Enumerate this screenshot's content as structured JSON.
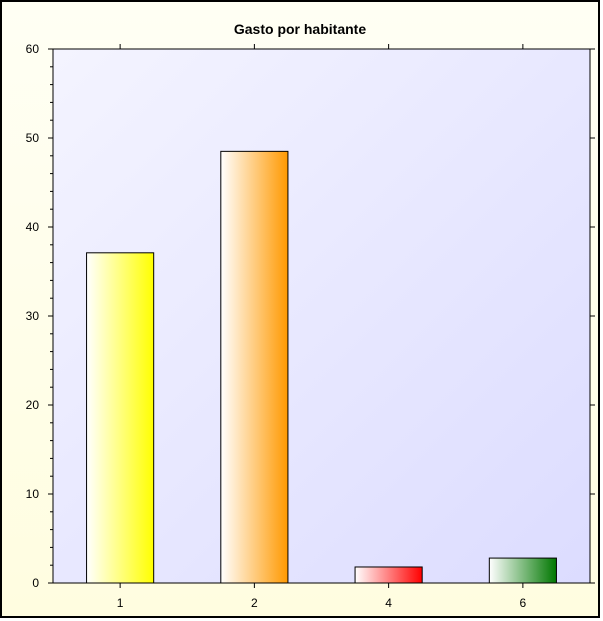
{
  "chart_data": {
    "type": "bar",
    "title": "Gasto por habitante",
    "xlabel": "",
    "ylabel": "",
    "categories": [
      "1",
      "2",
      "4",
      "6"
    ],
    "values": [
      37.1,
      48.5,
      1.8,
      2.8
    ],
    "ylim": [
      0,
      60
    ],
    "yticks": [
      "0",
      "10",
      "20",
      "30",
      "40",
      "50",
      "60"
    ],
    "grid": false,
    "legend": "none",
    "bar_colors": [
      "#ffff00",
      "#ff9900",
      "#ff0000",
      "#007700"
    ],
    "plot_background": [
      "#f4f4ff",
      "#dcdcff"
    ],
    "frame_background": "#fffde6"
  }
}
